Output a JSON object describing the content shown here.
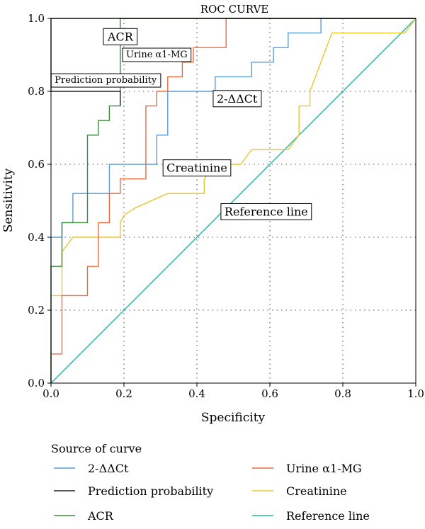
{
  "chart_data": {
    "type": "line",
    "title": "ROC CURVE",
    "xlabel": "Specificity",
    "ylabel": "Sensitivity",
    "xlim": [
      0,
      1
    ],
    "ylim": [
      0,
      1
    ],
    "x_ticks": [
      "0.0",
      "0.2",
      "0.4",
      "0.6",
      "0.8",
      "1.0"
    ],
    "y_ticks": [
      "0.0",
      "0.2",
      "0.4",
      "0.6",
      "0.8",
      "1.0"
    ],
    "grid": "dotted",
    "legend_title": "Source of curve",
    "legend_placement": "bottom",
    "series": [
      {
        "name": "2-ΔΔCt",
        "color": "#5b9bd5",
        "points": [
          [
            0,
            0
          ],
          [
            0,
            0.4
          ],
          [
            0.03,
            0.4
          ],
          [
            0.03,
            0.44
          ],
          [
            0.06,
            0.44
          ],
          [
            0.06,
            0.52
          ],
          [
            0.16,
            0.52
          ],
          [
            0.16,
            0.6
          ],
          [
            0.29,
            0.6
          ],
          [
            0.29,
            0.68
          ],
          [
            0.32,
            0.68
          ],
          [
            0.32,
            0.8
          ],
          [
            0.45,
            0.8
          ],
          [
            0.45,
            0.84
          ],
          [
            0.55,
            0.84
          ],
          [
            0.55,
            0.88
          ],
          [
            0.61,
            0.88
          ],
          [
            0.61,
            0.92
          ],
          [
            0.65,
            0.92
          ],
          [
            0.65,
            0.96
          ],
          [
            0.74,
            0.96
          ],
          [
            0.74,
            1
          ],
          [
            1,
            1
          ]
        ]
      },
      {
        "name": "Urine α1-MG",
        "color": "#ee6a3c",
        "points": [
          [
            0,
            0
          ],
          [
            0,
            0.08
          ],
          [
            0.03,
            0.08
          ],
          [
            0.03,
            0.24
          ],
          [
            0.1,
            0.24
          ],
          [
            0.1,
            0.32
          ],
          [
            0.13,
            0.32
          ],
          [
            0.13,
            0.44
          ],
          [
            0.16,
            0.44
          ],
          [
            0.16,
            0.52
          ],
          [
            0.19,
            0.52
          ],
          [
            0.19,
            0.56
          ],
          [
            0.26,
            0.56
          ],
          [
            0.26,
            0.76
          ],
          [
            0.29,
            0.76
          ],
          [
            0.29,
            0.8
          ],
          [
            0.32,
            0.8
          ],
          [
            0.32,
            0.84
          ],
          [
            0.36,
            0.84
          ],
          [
            0.36,
            0.88
          ],
          [
            0.39,
            0.88
          ],
          [
            0.39,
            0.92
          ],
          [
            0.48,
            0.92
          ],
          [
            0.48,
            1
          ],
          [
            1,
            1
          ]
        ]
      },
      {
        "name": "Prediction probability",
        "color": "#222222",
        "points": [
          [
            0.19,
            0.76
          ],
          [
            0.19,
            0.8
          ],
          [
            0,
            0.8
          ],
          [
            0,
            1
          ],
          [
            1,
            1
          ]
        ]
      },
      {
        "name": "Creatinine",
        "color": "#e8c630",
        "points": [
          [
            0,
            0
          ],
          [
            0,
            0.24
          ],
          [
            0.03,
            0.24
          ],
          [
            0.03,
            0.36
          ],
          [
            0.06,
            0.4
          ],
          [
            0.19,
            0.4
          ],
          [
            0.19,
            0.44
          ],
          [
            0.2,
            0.46
          ],
          [
            0.23,
            0.48
          ],
          [
            0.32,
            0.52
          ],
          [
            0.42,
            0.52
          ],
          [
            0.42,
            0.56
          ],
          [
            0.45,
            0.6
          ],
          [
            0.52,
            0.6
          ],
          [
            0.55,
            0.64
          ],
          [
            0.65,
            0.64
          ],
          [
            0.68,
            0.68
          ],
          [
            0.68,
            0.76
          ],
          [
            0.71,
            0.76
          ],
          [
            0.71,
            0.8
          ],
          [
            0.77,
            0.96
          ],
          [
            0.97,
            0.96
          ],
          [
            1,
            1
          ]
        ]
      },
      {
        "name": "ACR",
        "color": "#3d8b3d",
        "points": [
          [
            0,
            0
          ],
          [
            0,
            0.32
          ],
          [
            0.03,
            0.32
          ],
          [
            0.03,
            0.44
          ],
          [
            0.1,
            0.44
          ],
          [
            0.1,
            0.68
          ],
          [
            0.13,
            0.68
          ],
          [
            0.13,
            0.72
          ],
          [
            0.16,
            0.72
          ],
          [
            0.16,
            0.76
          ],
          [
            0.19,
            0.76
          ],
          [
            0.19,
            1
          ],
          [
            1,
            1
          ]
        ]
      },
      {
        "name": "Reference line",
        "color": "#1fb8a8",
        "points": [
          [
            0,
            0
          ],
          [
            1,
            1
          ]
        ]
      }
    ],
    "annotations": [
      {
        "text": "ACR",
        "x": 0.19,
        "y": 0.95
      },
      {
        "text": "Urine α1-MG",
        "x": 0.29,
        "y": 0.9
      },
      {
        "text": "Prediction probability",
        "x": 0.15,
        "y": 0.83
      },
      {
        "text": "2-ΔΔCt",
        "x": 0.51,
        "y": 0.78
      },
      {
        "text": "Creatinine",
        "x": 0.4,
        "y": 0.59
      },
      {
        "text": "Reference line",
        "x": 0.59,
        "y": 0.47
      }
    ]
  }
}
